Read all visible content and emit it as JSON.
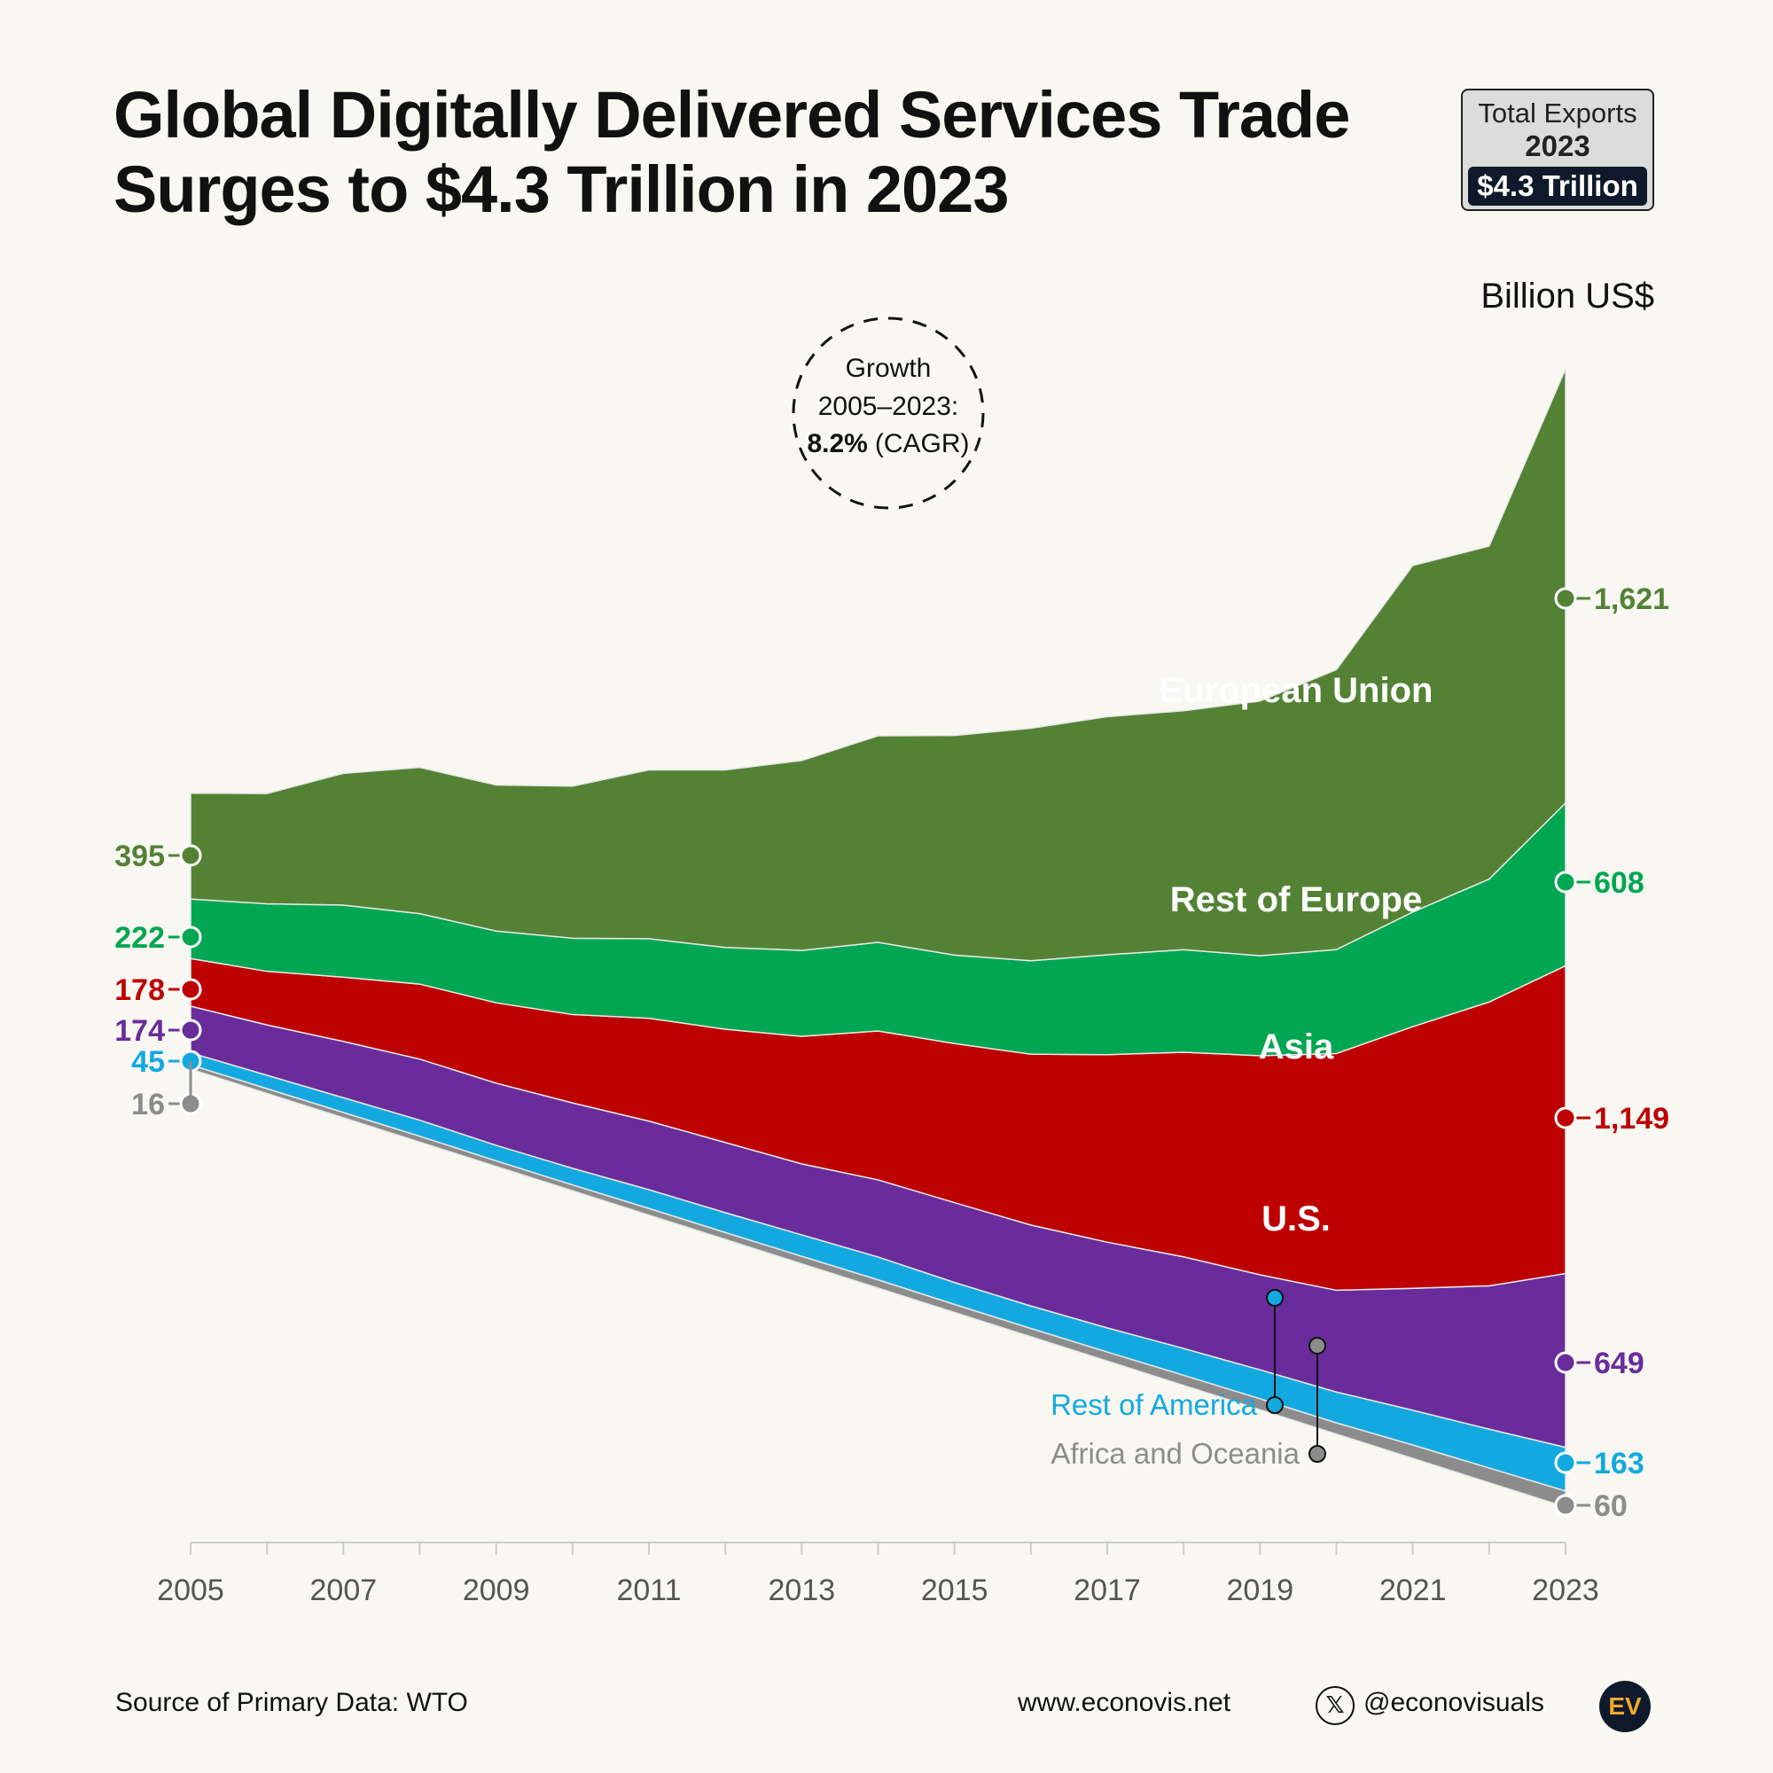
{
  "title": {
    "line1": "Global Digitally Delivered Services Trade",
    "line2": "Surges to $4.3 Trillion in 2023"
  },
  "total_box": {
    "label": "Total Exports",
    "year": "2023",
    "value": "$4.3 Trillion"
  },
  "unit_label": "Billion US$",
  "growth_note": {
    "line1": "Growth",
    "line2": "2005–2023:",
    "value": "8.2%",
    "suffix": "(CAGR)"
  },
  "footer": {
    "source": "Source of Primary Data: WTO",
    "website": "www.econovis.net",
    "handle": "@econovisuals",
    "x_icon": "x-logo-icon",
    "logo_text": "EV"
  },
  "colors": {
    "Africa and Oceania": "#8c8c8c",
    "Rest of America": "#13a9e0",
    "U.S.": "#6a2c9b",
    "Asia": "#bd0000",
    "Rest of Europe": "#00a651",
    "European Union": "#548235"
  },
  "chart_data": {
    "type": "area",
    "stacked": true,
    "x": [
      2005,
      2006,
      2007,
      2008,
      2009,
      2010,
      2011,
      2012,
      2013,
      2014,
      2015,
      2016,
      2017,
      2018,
      2019,
      2020,
      2021,
      2022,
      2023
    ],
    "x_ticks": [
      2005,
      2007,
      2009,
      2011,
      2013,
      2015,
      2017,
      2019,
      2021,
      2023
    ],
    "ylabel": "Billion US$",
    "series": [
      {
        "name": "Africa and Oceania",
        "values": [
          16,
          18,
          20,
          22,
          21,
          22,
          25,
          26,
          28,
          31,
          30,
          31,
          34,
          38,
          41,
          42,
          50,
          55,
          60
        ],
        "start_label": "16",
        "end_label": "60"
      },
      {
        "name": "Rest of America",
        "values": [
          45,
          50,
          55,
          60,
          58,
          62,
          70,
          74,
          80,
          85,
          82,
          84,
          90,
          100,
          108,
          115,
          130,
          145,
          163
        ],
        "start_label": "45",
        "end_label": "163"
      },
      {
        "name": "U.S.",
        "values": [
          174,
          188,
          210,
          228,
          232,
          244,
          256,
          262,
          265,
          288,
          298,
          302,
          320,
          342,
          355,
          380,
          455,
          535,
          649
        ],
        "start_label": "174",
        "end_label": "649"
      },
      {
        "name": "Asia",
        "values": [
          178,
          200,
          240,
          280,
          300,
          330,
          384,
          423,
          476,
          556,
          594,
          638,
          700,
          764,
          818,
          884,
          977,
          1060,
          1149
        ],
        "start_label": "178",
        "end_label": "1,149"
      },
      {
        "name": "Rest of Europe",
        "values": [
          222,
          252,
          269,
          263,
          268,
          285,
          297,
          305,
          321,
          331,
          330,
          349,
          373,
          383,
          373,
          388,
          428,
          459,
          608
        ],
        "start_label": "222",
        "end_label": "608"
      },
      {
        "name": "European Union",
        "values": [
          395,
          412,
          492,
          546,
          545,
          568,
          630,
          663,
          709,
          771,
          820,
          868,
          889,
          892,
          951,
          1045,
          1294,
          1243,
          1621
        ],
        "start_label": "395",
        "end_label": "1,621"
      }
    ],
    "area_labels": [
      "European Union",
      "Rest of Europe",
      "Asia",
      "U.S."
    ],
    "callouts": [
      {
        "name": "Rest of America",
        "text": "Rest of America"
      },
      {
        "name": "Africa and Oceania",
        "text": "Africa and Oceania"
      }
    ]
  }
}
